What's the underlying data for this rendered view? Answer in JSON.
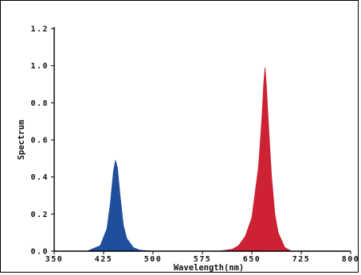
{
  "chart_data": {
    "type": "area",
    "title": "",
    "xlabel": "Wavelength(nm)",
    "ylabel": "Spectrum",
    "xlim": [
      350,
      800
    ],
    "ylim": [
      0,
      1.2
    ],
    "x_ticks": [
      "350",
      "425",
      "500",
      "575",
      "650",
      "725",
      "800"
    ],
    "y_ticks": [
      "0.0",
      "0.2",
      "0.4",
      "0.6",
      "0.8",
      "1.0",
      "1.2"
    ],
    "grid": false,
    "series": [
      {
        "color": "#1f4e9a",
        "x": [
          400,
          420,
          430,
          435,
          440,
          443,
          446,
          450,
          455,
          460,
          470,
          480,
          500
        ],
        "y": [
          0.0,
          0.03,
          0.12,
          0.25,
          0.43,
          0.49,
          0.45,
          0.3,
          0.14,
          0.07,
          0.02,
          0.005,
          0.0
        ]
      },
      {
        "color": "#cc2233",
        "x": [
          600,
          620,
          630,
          640,
          650,
          660,
          665,
          668,
          670,
          672,
          675,
          680,
          685,
          690,
          700,
          710
        ],
        "y": [
          0.0,
          0.01,
          0.03,
          0.08,
          0.18,
          0.45,
          0.7,
          0.9,
          0.99,
          0.9,
          0.7,
          0.4,
          0.2,
          0.1,
          0.02,
          0.0
        ]
      }
    ]
  }
}
